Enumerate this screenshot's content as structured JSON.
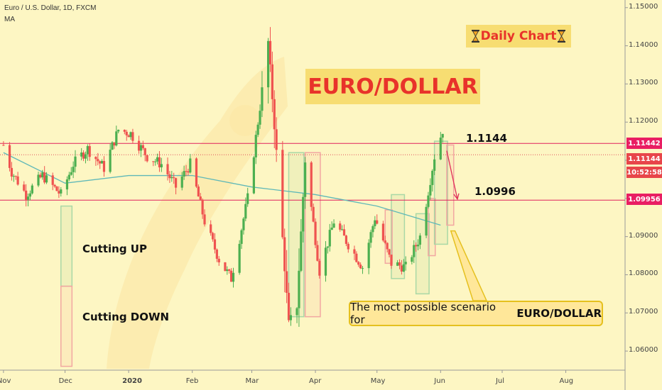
{
  "header": {
    "symbol_line": "Euro / U.S. Dollar, 1D, FXCM",
    "indicator": "MA"
  },
  "annotations": {
    "title": "EURO/DOLLAR",
    "daily": "Daily Chart",
    "level_high": "1.1144",
    "level_low": "1.0996",
    "cutting_up": "Cutting UP",
    "cutting_down": "Cutting DOWN",
    "scenario_prefix": "The moct possible scenario for",
    "scenario_bold": "EURO/DOLLAR"
  },
  "price_tags": {
    "resistance": "1.11442",
    "current": "1.11144",
    "time": "10:52:58",
    "support": "1.09956"
  },
  "colors": {
    "up": "#4caf50",
    "down": "#ef5350",
    "ma": "#5fb8b8",
    "level": "#e0205c",
    "tag_red": "#e91e63",
    "background": "#fdf6c3"
  },
  "chart_data": {
    "type": "candlestick",
    "x_ticks": [
      "Nov",
      "Dec",
      "2020",
      "Feb",
      "Mar",
      "Apr",
      "May",
      "Jun",
      "Jul",
      "Aug"
    ],
    "y_ticks": [
      "1.15000",
      "1.14000",
      "1.13000",
      "1.12000",
      "1.11000",
      "1.10000",
      "1.09000",
      "1.08000",
      "1.07000",
      "1.06000"
    ],
    "ylim": [
      1.055,
      1.152
    ],
    "horizontal_levels": [
      1.11442,
      1.09956
    ],
    "dotted_level": 1.11144,
    "close_path": [
      [
        "2019-11-01",
        1.114
      ],
      [
        "2019-11-05",
        1.107
      ],
      [
        "2019-11-12",
        1.101
      ],
      [
        "2019-11-20",
        1.106
      ],
      [
        "2019-11-29",
        1.101
      ],
      [
        "2019-12-05",
        1.109
      ],
      [
        "2019-12-12",
        1.113
      ],
      [
        "2019-12-20",
        1.108
      ],
      [
        "2019-12-27",
        1.118
      ],
      [
        "2020-01-02",
        1.117
      ],
      [
        "2020-01-10",
        1.111
      ],
      [
        "2020-01-17",
        1.109
      ],
      [
        "2020-01-24",
        1.103
      ],
      [
        "2020-01-31",
        1.109
      ],
      [
        "2020-02-07",
        1.094
      ],
      [
        "2020-02-14",
        1.084
      ],
      [
        "2020-02-20",
        1.079
      ],
      [
        "2020-02-28",
        1.1
      ],
      [
        "2020-03-05",
        1.124
      ],
      [
        "2020-03-09",
        1.141
      ],
      [
        "2020-03-13",
        1.112
      ],
      [
        "2020-03-19",
        1.067
      ],
      [
        "2020-03-23",
        1.072
      ],
      [
        "2020-03-27",
        1.11
      ],
      [
        "2020-04-03",
        1.081
      ],
      [
        "2020-04-10",
        1.094
      ],
      [
        "2020-04-17",
        1.088
      ],
      [
        "2020-04-24",
        1.082
      ],
      [
        "2020-04-30",
        1.095
      ],
      [
        "2020-05-08",
        1.083
      ],
      [
        "2020-05-15",
        1.082
      ],
      [
        "2020-05-22",
        1.09
      ],
      [
        "2020-05-29",
        1.111
      ],
      [
        "2020-06-02",
        1.118
      ]
    ],
    "moving_average": [
      [
        "2019-11-01",
        1.112
      ],
      [
        "2019-12-01",
        1.104
      ],
      [
        "2020-01-01",
        1.106
      ],
      [
        "2020-02-01",
        1.106
      ],
      [
        "2020-03-01",
        1.103
      ],
      [
        "2020-04-01",
        1.101
      ],
      [
        "2020-05-01",
        1.098
      ],
      [
        "2020-06-01",
        1.093
      ]
    ],
    "boxes": [
      {
        "start": "2019-11-29",
        "end": "2019-12-03",
        "low": 1.077,
        "high": 1.098,
        "color": "green"
      },
      {
        "start": "2019-11-29",
        "end": "2019-12-03",
        "low": 1.056,
        "high": 1.077,
        "color": "red"
      },
      {
        "start": "2020-03-19",
        "end": "2020-03-25",
        "low": 1.069,
        "high": 1.112,
        "color": "green"
      },
      {
        "start": "2020-03-27",
        "end": "2020-04-02",
        "low": 1.069,
        "high": 1.112,
        "color": "red"
      },
      {
        "start": "2020-05-08",
        "end": "2020-05-13",
        "low": 1.079,
        "high": 1.101,
        "color": "green"
      },
      {
        "start": "2020-05-05",
        "end": "2020-05-07",
        "low": 1.083,
        "high": 1.097,
        "color": "red"
      },
      {
        "start": "2020-05-20",
        "end": "2020-05-25",
        "low": 1.075,
        "high": 1.096,
        "color": "green"
      },
      {
        "start": "2020-05-26",
        "end": "2020-05-28",
        "low": 1.085,
        "high": 1.1,
        "color": "red"
      },
      {
        "start": "2020-05-29",
        "end": "2020-06-03",
        "low": 1.088,
        "high": 1.115,
        "color": "green"
      },
      {
        "start": "2020-06-04",
        "end": "2020-06-06",
        "low": 1.093,
        "high": 1.114,
        "color": "red"
      }
    ]
  }
}
